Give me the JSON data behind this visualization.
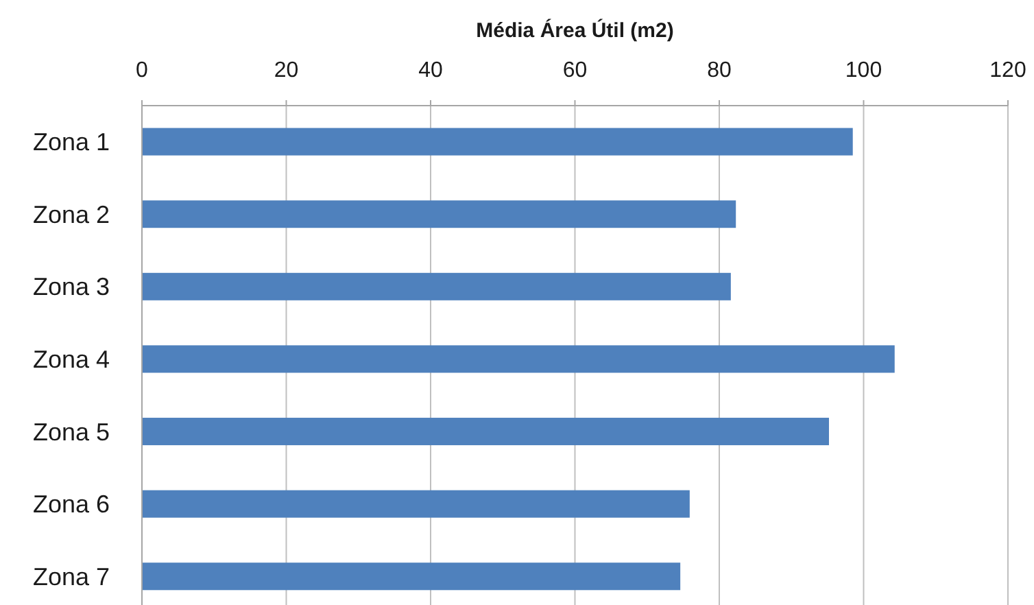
{
  "chart_data": {
    "type": "bar",
    "orientation": "horizontal",
    "xlabel": "Média Área Útil (m2)",
    "categories": [
      "Zona 1",
      "Zona 2",
      "Zona 3",
      "Zona 4",
      "Zona 5",
      "Zona 6",
      "Zona 7"
    ],
    "values": [
      98.5,
      82.3,
      81.6,
      104.3,
      95.2,
      75.9,
      74.6
    ],
    "color": "#4f81bd",
    "xlim": [
      0,
      120
    ],
    "xticks": [
      0,
      20,
      40,
      60,
      80,
      100,
      120
    ],
    "grid": "x"
  }
}
